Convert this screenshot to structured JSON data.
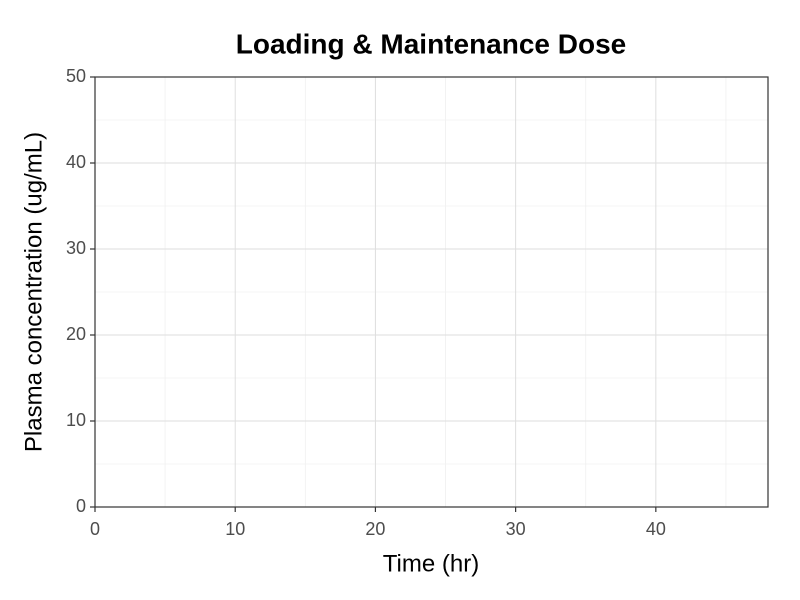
{
  "chart_data": {
    "type": "line",
    "title": "Loading & Maintenance Dose",
    "x_label": "Time (hr)",
    "y_label": "Plasma concentration (ug/mL)",
    "xlim": [
      0,
      48
    ],
    "xticks": [
      0,
      10,
      20,
      30,
      40
    ],
    "xminor": [
      5,
      15,
      25,
      35,
      45
    ],
    "ylim": [
      0,
      50
    ],
    "yticks": [
      0,
      10,
      20,
      30,
      40,
      50
    ],
    "yminor": [
      5,
      15,
      25,
      35,
      45
    ],
    "grid": true,
    "series": []
  }
}
